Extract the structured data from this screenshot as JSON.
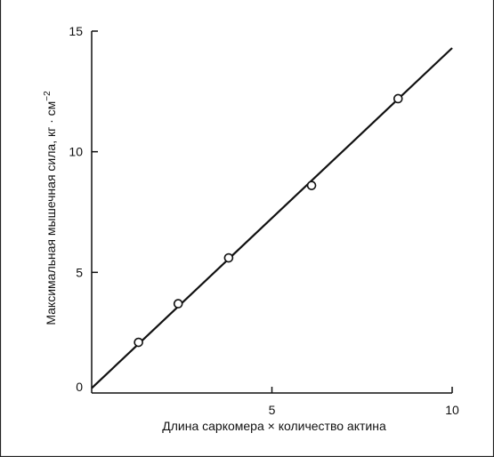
{
  "chart_data": {
    "type": "scatter",
    "title": "",
    "xlabel": "Длина саркомера × количество актина",
    "ylabel": "Максимальная мышечная сила, кг · см",
    "ylabel_sup": "−2",
    "xlim": [
      0,
      10
    ],
    "ylim": [
      0,
      15
    ],
    "x_ticks": [
      0,
      5,
      10
    ],
    "x_tick_labels": [
      "",
      "5",
      "10"
    ],
    "y_ticks": [
      0,
      5,
      10,
      15
    ],
    "y_tick_labels": [
      "0",
      "5",
      "10",
      "15"
    ],
    "grid": false,
    "legend": "none",
    "points": [
      {
        "x": 1.3,
        "y": 2.1
      },
      {
        "x": 2.4,
        "y": 3.7
      },
      {
        "x": 3.8,
        "y": 5.6
      },
      {
        "x": 6.1,
        "y": 8.6
      },
      {
        "x": 8.5,
        "y": 12.2
      }
    ],
    "fit_line": {
      "x": [
        0,
        10
      ],
      "y": [
        0.2,
        14.3
      ]
    },
    "colors": {
      "ink": "#111111",
      "marker_fill": "#ffffff"
    }
  }
}
